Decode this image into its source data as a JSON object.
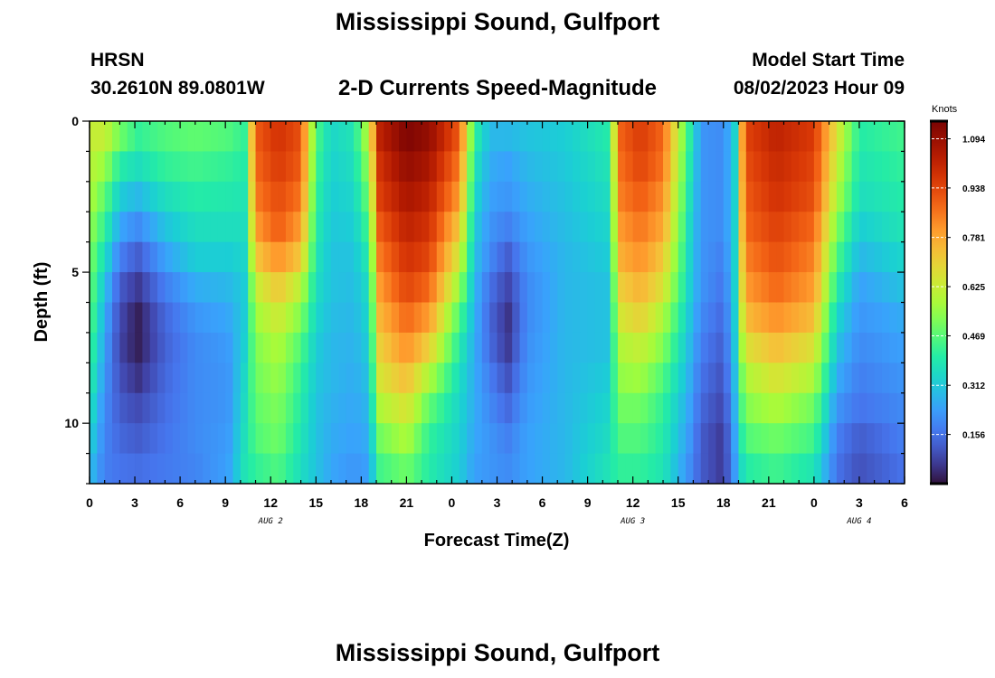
{
  "header": {
    "title": "Mississippi Sound, Gulfport",
    "station_code": "HRSN",
    "station_coords": "30.2610N  89.0801W",
    "product": "2-D Currents Speed-Magnitude",
    "start_label": "Model Start Time",
    "start_value": "08/02/2023 Hour 09"
  },
  "footer": {
    "title": "Mississippi Sound, Gulfport"
  },
  "chart_data": {
    "type": "heatmap",
    "title": "2-D Currents Speed-Magnitude",
    "xlabel": "Forecast Time(Z)",
    "ylabel": "Depth (ft)",
    "x_range_hours": [
      0,
      54
    ],
    "y_range_ft": [
      0,
      12
    ],
    "x_tick_labels": [
      "0",
      "3",
      "6",
      "9",
      "12",
      "15",
      "18",
      "21",
      "0",
      "3",
      "6",
      "9",
      "12",
      "15",
      "18",
      "21",
      "0",
      "3",
      "6"
    ],
    "y_tick_labels": [
      "0",
      "5",
      "10"
    ],
    "y_tick_values": [
      0,
      5,
      10
    ],
    "date_labels": [
      {
        "text": "AUG 2",
        "hour": 12
      },
      {
        "text": "AUG 3",
        "hour": 36
      },
      {
        "text": "AUG 4",
        "hour": 51
      }
    ],
    "colorbar": {
      "unit": "Knots",
      "min": 0,
      "max": 1.15,
      "tick_labels": [
        "1.094",
        "0.938",
        "0.781",
        "0.625",
        "0.469",
        "0.312",
        "0.156"
      ],
      "tick_values": [
        1.094,
        0.938,
        0.781,
        0.625,
        0.469,
        0.312,
        0.156
      ]
    },
    "grid": {
      "x_step_hours": 0.5,
      "depth_rows_ft": [
        0.5,
        1.5,
        2.5,
        3.5,
        4.5,
        5.5,
        6.5,
        7.5,
        8.5,
        9.5,
        10.5,
        11.5
      ],
      "profiles": [
        {
          "hour": 0,
          "speeds": [
            0.62,
            0.6,
            0.58,
            0.55,
            0.52,
            0.5,
            0.48,
            0.45,
            0.42,
            0.38,
            0.34,
            0.3
          ]
        },
        {
          "hour": 1,
          "speeds": [
            0.62,
            0.55,
            0.48,
            0.42,
            0.36,
            0.3,
            0.26,
            0.24,
            0.22,
            0.2,
            0.19,
            0.18
          ]
        },
        {
          "hour": 2,
          "speeds": [
            0.5,
            0.4,
            0.32,
            0.25,
            0.18,
            0.12,
            0.09,
            0.08,
            0.1,
            0.12,
            0.14,
            0.16
          ]
        },
        {
          "hour": 3.2,
          "speeds": [
            0.42,
            0.36,
            0.28,
            0.2,
            0.12,
            0.06,
            0.02,
            0.02,
            0.05,
            0.09,
            0.12,
            0.15
          ]
        },
        {
          "hour": 5,
          "speeds": [
            0.46,
            0.42,
            0.36,
            0.3,
            0.24,
            0.18,
            0.14,
            0.13,
            0.14,
            0.15,
            0.16,
            0.17
          ]
        },
        {
          "hour": 7,
          "speeds": [
            0.48,
            0.44,
            0.4,
            0.36,
            0.32,
            0.26,
            0.22,
            0.2,
            0.2,
            0.2,
            0.2,
            0.19
          ]
        },
        {
          "hour": 9.2,
          "speeds": [
            0.46,
            0.42,
            0.39,
            0.36,
            0.32,
            0.28,
            0.25,
            0.23,
            0.22,
            0.22,
            0.23,
            0.24
          ]
        },
        {
          "hour": 10.3,
          "speeds": [
            0.42,
            0.4,
            0.38,
            0.36,
            0.34,
            0.32,
            0.32,
            0.33,
            0.35,
            0.36,
            0.37,
            0.38
          ]
        },
        {
          "hour": 11,
          "speeds": [
            0.9,
            0.88,
            0.85,
            0.8,
            0.72,
            0.62,
            0.56,
            0.52,
            0.5,
            0.48,
            0.46,
            0.42
          ]
        },
        {
          "hour": 12.5,
          "speeds": [
            0.98,
            0.96,
            0.93,
            0.9,
            0.82,
            0.72,
            0.64,
            0.58,
            0.55,
            0.52,
            0.5,
            0.46
          ]
        },
        {
          "hour": 14,
          "speeds": [
            0.92,
            0.9,
            0.86,
            0.8,
            0.72,
            0.6,
            0.52,
            0.46,
            0.42,
            0.4,
            0.38,
            0.36
          ]
        },
        {
          "hour": 15,
          "speeds": [
            0.46,
            0.44,
            0.42,
            0.4,
            0.38,
            0.36,
            0.34,
            0.32,
            0.31,
            0.3,
            0.3,
            0.3
          ]
        },
        {
          "hour": 16,
          "speeds": [
            0.34,
            0.33,
            0.32,
            0.31,
            0.3,
            0.3,
            0.29,
            0.28,
            0.28,
            0.27,
            0.26,
            0.25
          ]
        },
        {
          "hour": 17.5,
          "speeds": [
            0.38,
            0.36,
            0.34,
            0.32,
            0.3,
            0.29,
            0.28,
            0.27,
            0.26,
            0.25,
            0.24,
            0.22
          ]
        },
        {
          "hour": 18.5,
          "speeds": [
            0.6,
            0.55,
            0.5,
            0.45,
            0.4,
            0.36,
            0.34,
            0.32,
            0.3,
            0.28,
            0.26,
            0.24
          ]
        },
        {
          "hour": 19.2,
          "speeds": [
            1.02,
            0.98,
            0.95,
            0.9,
            0.85,
            0.8,
            0.75,
            0.7,
            0.65,
            0.58,
            0.5,
            0.44
          ]
        },
        {
          "hour": 21,
          "speeds": [
            1.14,
            1.1,
            1.06,
            1.02,
            0.98,
            0.94,
            0.88,
            0.82,
            0.74,
            0.66,
            0.58,
            0.5
          ]
        },
        {
          "hour": 22.5,
          "speeds": [
            1.1,
            1.06,
            1.02,
            0.98,
            0.94,
            0.88,
            0.8,
            0.7,
            0.58,
            0.48,
            0.42,
            0.4
          ]
        },
        {
          "hour": 24.5,
          "speeds": [
            0.9,
            0.85,
            0.8,
            0.72,
            0.64,
            0.55,
            0.46,
            0.4,
            0.36,
            0.34,
            0.33,
            0.32
          ]
        },
        {
          "hour": 25.5,
          "speeds": [
            0.42,
            0.38,
            0.35,
            0.32,
            0.3,
            0.28,
            0.27,
            0.26,
            0.26,
            0.26,
            0.25,
            0.24
          ]
        },
        {
          "hour": 26.5,
          "speeds": [
            0.28,
            0.26,
            0.24,
            0.22,
            0.2,
            0.16,
            0.14,
            0.15,
            0.18,
            0.2,
            0.22,
            0.22
          ]
        },
        {
          "hour": 27.7,
          "speeds": [
            0.28,
            0.24,
            0.22,
            0.18,
            0.12,
            0.08,
            0.05,
            0.06,
            0.1,
            0.14,
            0.18,
            0.2
          ]
        },
        {
          "hour": 29,
          "speeds": [
            0.3,
            0.28,
            0.26,
            0.24,
            0.22,
            0.2,
            0.2,
            0.21,
            0.22,
            0.23,
            0.24,
            0.24
          ]
        },
        {
          "hour": 31.5,
          "speeds": [
            0.32,
            0.31,
            0.3,
            0.29,
            0.28,
            0.28,
            0.28,
            0.28,
            0.28,
            0.28,
            0.28,
            0.28
          ]
        },
        {
          "hour": 34.5,
          "speeds": [
            0.4,
            0.38,
            0.36,
            0.34,
            0.32,
            0.3,
            0.3,
            0.3,
            0.32,
            0.34,
            0.36,
            0.38
          ]
        },
        {
          "hour": 35,
          "speeds": [
            0.88,
            0.86,
            0.84,
            0.8,
            0.76,
            0.7,
            0.64,
            0.58,
            0.54,
            0.5,
            0.46,
            0.42
          ]
        },
        {
          "hour": 36.5,
          "speeds": [
            0.96,
            0.94,
            0.9,
            0.86,
            0.82,
            0.76,
            0.7,
            0.62,
            0.56,
            0.5,
            0.46,
            0.42
          ]
        },
        {
          "hour": 38,
          "speeds": [
            0.88,
            0.86,
            0.82,
            0.78,
            0.72,
            0.66,
            0.58,
            0.52,
            0.46,
            0.42,
            0.4,
            0.38
          ]
        },
        {
          "hour": 39.8,
          "speeds": [
            0.4,
            0.38,
            0.36,
            0.34,
            0.33,
            0.32,
            0.3,
            0.28,
            0.26,
            0.24,
            0.22,
            0.2
          ]
        },
        {
          "hour": 40.5,
          "speeds": [
            0.22,
            0.22,
            0.22,
            0.22,
            0.22,
            0.22,
            0.2,
            0.18,
            0.16,
            0.14,
            0.12,
            0.12
          ]
        },
        {
          "hour": 42,
          "speeds": [
            0.2,
            0.2,
            0.2,
            0.2,
            0.18,
            0.16,
            0.14,
            0.12,
            0.1,
            0.08,
            0.06,
            0.06
          ]
        },
        {
          "hour": 42.8,
          "speeds": [
            0.34,
            0.34,
            0.34,
            0.34,
            0.34,
            0.34,
            0.33,
            0.32,
            0.3,
            0.28,
            0.26,
            0.24
          ]
        },
        {
          "hour": 43.4,
          "speeds": [
            0.94,
            0.92,
            0.9,
            0.88,
            0.84,
            0.8,
            0.74,
            0.66,
            0.58,
            0.52,
            0.46,
            0.4
          ]
        },
        {
          "hour": 45.5,
          "speeds": [
            1.02,
            1.0,
            0.98,
            0.95,
            0.92,
            0.88,
            0.82,
            0.74,
            0.66,
            0.58,
            0.5,
            0.44
          ]
        },
        {
          "hour": 48,
          "speeds": [
            0.96,
            0.94,
            0.92,
            0.88,
            0.84,
            0.8,
            0.74,
            0.66,
            0.58,
            0.5,
            0.44,
            0.38
          ]
        },
        {
          "hour": 49.5,
          "speeds": [
            0.66,
            0.62,
            0.58,
            0.52,
            0.46,
            0.4,
            0.34,
            0.3,
            0.26,
            0.22,
            0.18,
            0.16
          ]
        },
        {
          "hour": 51,
          "speeds": [
            0.4,
            0.38,
            0.36,
            0.32,
            0.28,
            0.24,
            0.22,
            0.2,
            0.18,
            0.16,
            0.12,
            0.1
          ]
        },
        {
          "hour": 54,
          "speeds": [
            0.44,
            0.42,
            0.4,
            0.38,
            0.34,
            0.3,
            0.26,
            0.24,
            0.22,
            0.2,
            0.18,
            0.16
          ]
        }
      ]
    }
  },
  "colors": {
    "axis": "#000000",
    "background": "#ffffff"
  }
}
